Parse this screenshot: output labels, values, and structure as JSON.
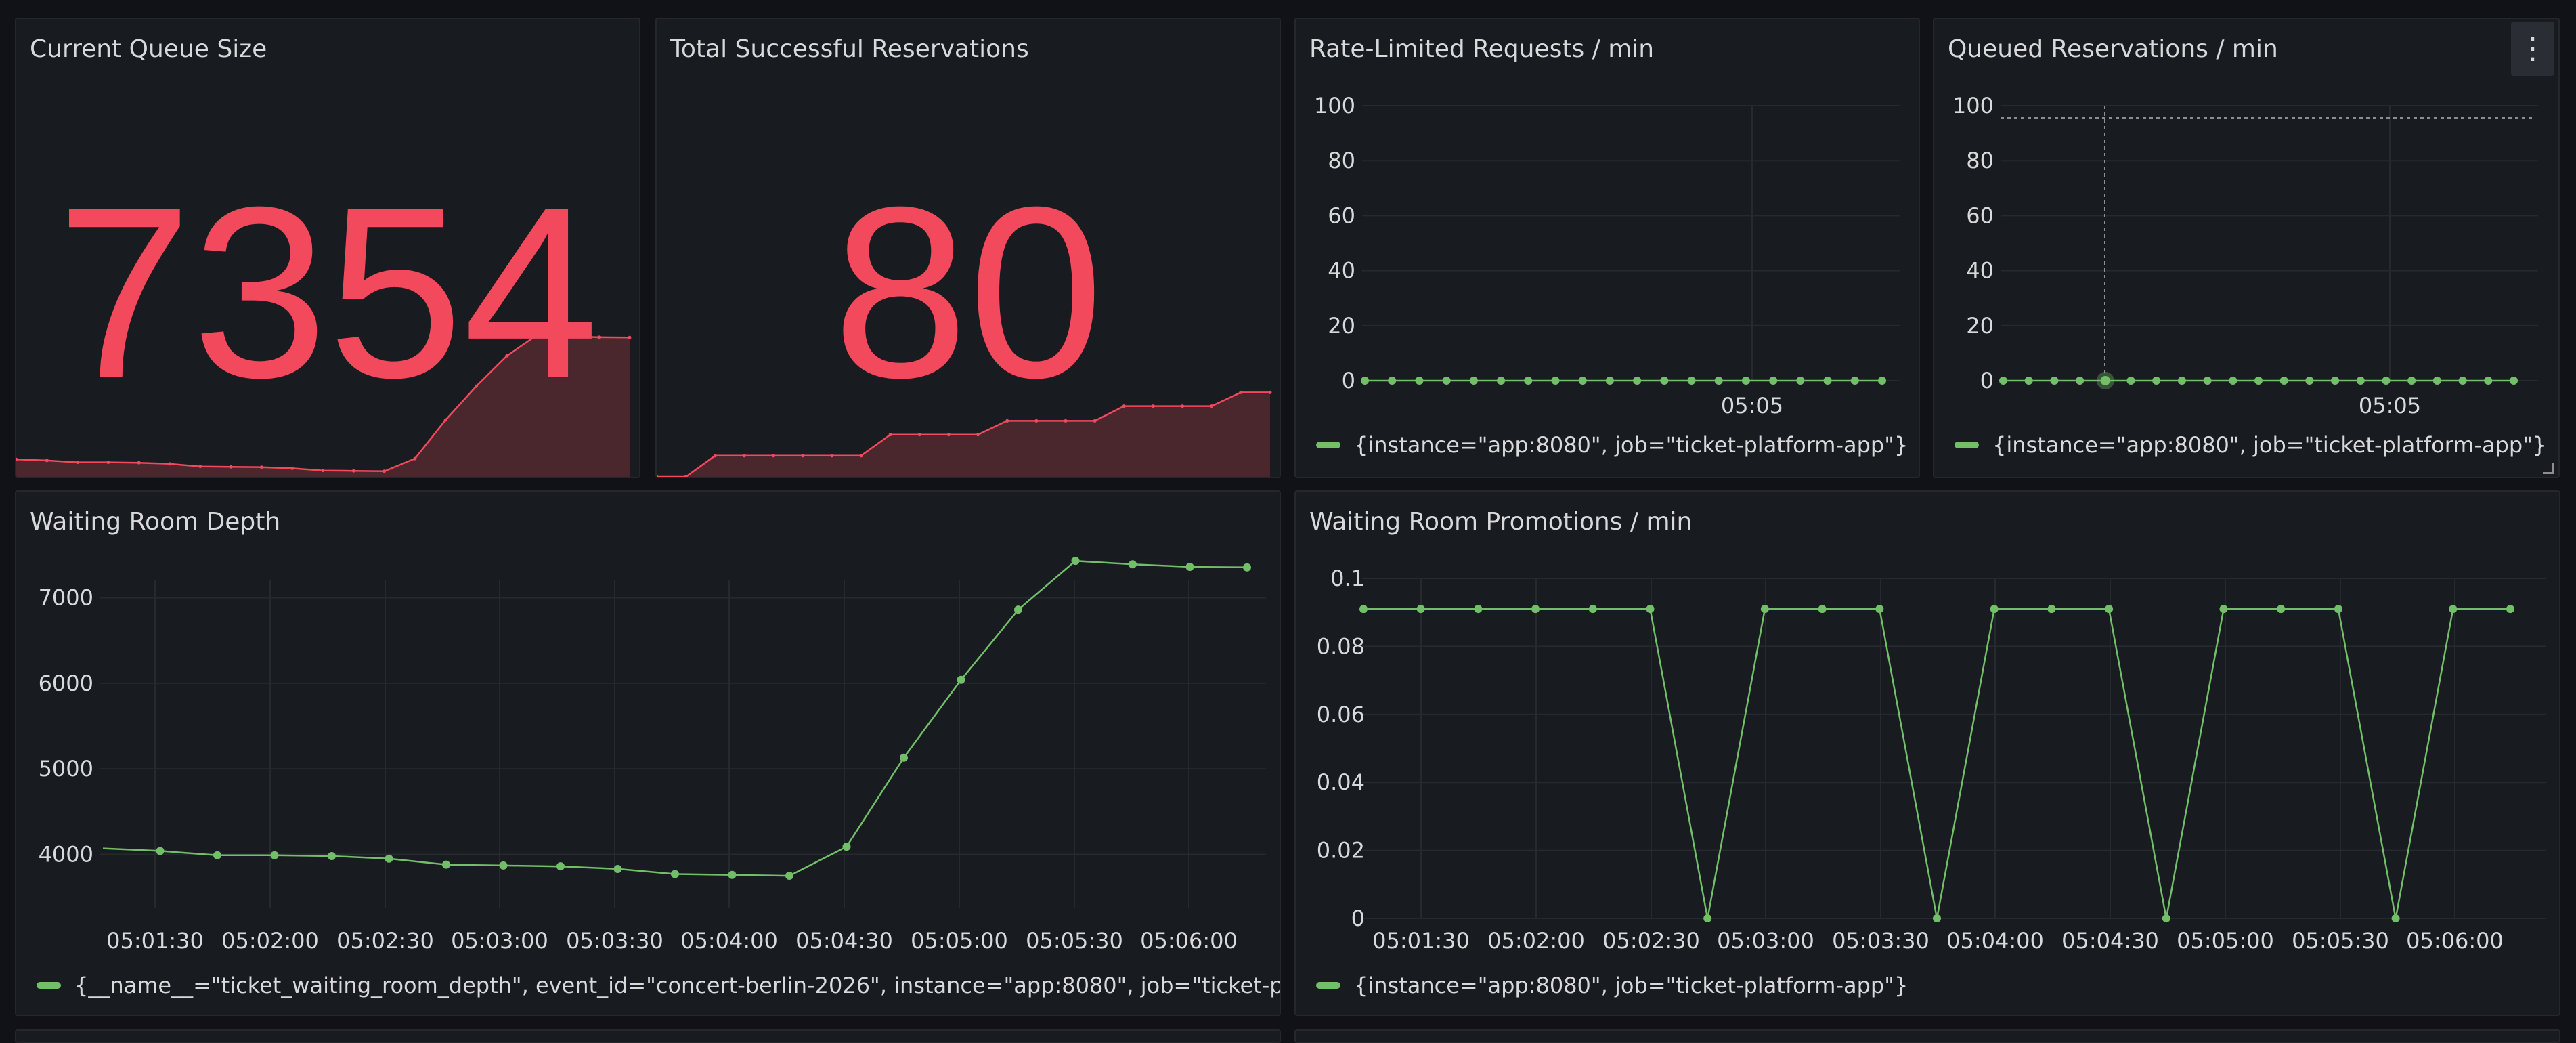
{
  "colors": {
    "red": "#f2495c",
    "red_fill": "#4a262d",
    "green": "#73bf69",
    "grid": "#26292e",
    "axis_text": "#d8d9da"
  },
  "panels": {
    "queue": {
      "title": "Current Queue Size",
      "value": "7354"
    },
    "reservations": {
      "title": "Total Successful Reservations",
      "value": "80"
    },
    "rate": {
      "title": "Rate-Limited Requests / min",
      "legend": "{instance=\"app:8080\", job=\"ticket-platform-app\"}"
    },
    "queued": {
      "title": "Queued Reservations / min",
      "legend": "{instance=\"app:8080\", job=\"ticket-platform-app\"}",
      "menu_icon": "kebab-menu-icon"
    },
    "depth": {
      "title": "Waiting Room Depth",
      "legend": "{__name__=\"ticket_waiting_room_depth\", event_id=\"concert-berlin-2026\", instance=\"app:8080\", job=\"ticket-platfor"
    },
    "promotions": {
      "title": "Waiting Room Promotions / min",
      "legend": "{instance=\"app:8080\", job=\"ticket-platform-app\"}"
    }
  },
  "chart_data": [
    {
      "id": "queue",
      "type": "area",
      "title": "Current Queue Size",
      "stat_value": 7354,
      "values": [
        4070,
        4040,
        3990,
        3990,
        3980,
        3950,
        3880,
        3870,
        3860,
        3830,
        3770,
        3760,
        3750,
        4090,
        5130,
        6040,
        6860,
        7430,
        7390,
        7360,
        7354
      ],
      "ylim": [
        3600,
        9000
      ]
    },
    {
      "id": "reservations",
      "type": "area",
      "title": "Total Successful Reservations",
      "stat_value": 80,
      "values": [
        0,
        0,
        20,
        20,
        20,
        20,
        20,
        20,
        40,
        40,
        40,
        40,
        53,
        53,
        53,
        53,
        67,
        67,
        67,
        67,
        80,
        80
      ],
      "ylim": [
        0,
        190
      ]
    },
    {
      "id": "rate",
      "type": "line",
      "title": "Rate-Limited Requests / min",
      "x_tick_labels": [
        "05:05"
      ],
      "values": [
        0,
        0,
        0,
        0,
        0,
        0,
        0,
        0,
        0,
        0,
        0,
        0,
        0,
        0,
        0,
        0,
        0,
        0,
        0,
        0
      ],
      "ylim": [
        0,
        100
      ],
      "y_ticks": [
        0,
        20,
        40,
        60,
        80,
        100
      ],
      "grid": true,
      "legend_position": "bottom"
    },
    {
      "id": "queued",
      "type": "line",
      "title": "Queued Reservations / min",
      "x_tick_labels": [
        "05:05"
      ],
      "values": [
        0,
        0,
        0,
        0,
        0,
        0,
        0,
        0,
        0,
        0,
        0,
        0,
        0,
        0,
        0,
        0,
        0,
        0,
        0,
        0,
        0
      ],
      "ylim": [
        0,
        100
      ],
      "y_ticks": [
        0,
        20,
        40,
        60,
        80,
        100
      ],
      "grid": true,
      "legend_position": "bottom"
    },
    {
      "id": "depth",
      "type": "line",
      "title": "Waiting Room Depth",
      "x": [
        "05:01:00",
        "05:01:30",
        "05:01:45",
        "05:02:00",
        "05:02:15",
        "05:02:30",
        "05:02:45",
        "05:03:00",
        "05:03:15",
        "05:03:30",
        "05:03:45",
        "05:04:00",
        "05:04:15",
        "05:04:30",
        "05:04:45",
        "05:05:00",
        "05:05:15",
        "05:05:30",
        "05:05:45",
        "05:06:00",
        "05:06:15"
      ],
      "values": [
        4070,
        4040,
        3990,
        3990,
        3980,
        3950,
        3880,
        3870,
        3860,
        3830,
        3770,
        3760,
        3750,
        4090,
        5130,
        6040,
        6860,
        7430,
        7390,
        7360,
        7354
      ],
      "x_tick_labels": [
        "05:01:30",
        "05:02:00",
        "05:02:30",
        "05:03:00",
        "05:03:30",
        "05:04:00",
        "05:04:30",
        "05:05:00",
        "05:05:30",
        "05:06:00"
      ],
      "y_ticks": [
        4000,
        5000,
        6000,
        7000
      ],
      "grid": true,
      "legend_position": "bottom"
    },
    {
      "id": "promotions",
      "type": "line",
      "title": "Waiting Room Promotions / min",
      "values": [
        0.091,
        0.091,
        0.091,
        0.091,
        0.091,
        0.091,
        0,
        0.091,
        0.091,
        0.091,
        0,
        0.091,
        0.091,
        0.091,
        0,
        0.091,
        0.091,
        0.091,
        0,
        0.091,
        0.091
      ],
      "x_tick_labels": [
        "05:01:30",
        "05:02:00",
        "05:02:30",
        "05:03:00",
        "05:03:30",
        "05:04:00",
        "05:04:30",
        "05:05:00",
        "05:05:30",
        "05:06:00"
      ],
      "y_tick_labels": [
        "0",
        "0.02",
        "0.04",
        "0.06",
        "0.08",
        "0.1"
      ],
      "y_ticks": [
        0,
        0.02,
        0.04,
        0.06,
        0.08,
        0.1
      ],
      "ylim": [
        0,
        0.1
      ],
      "grid": true,
      "legend_position": "bottom"
    }
  ]
}
